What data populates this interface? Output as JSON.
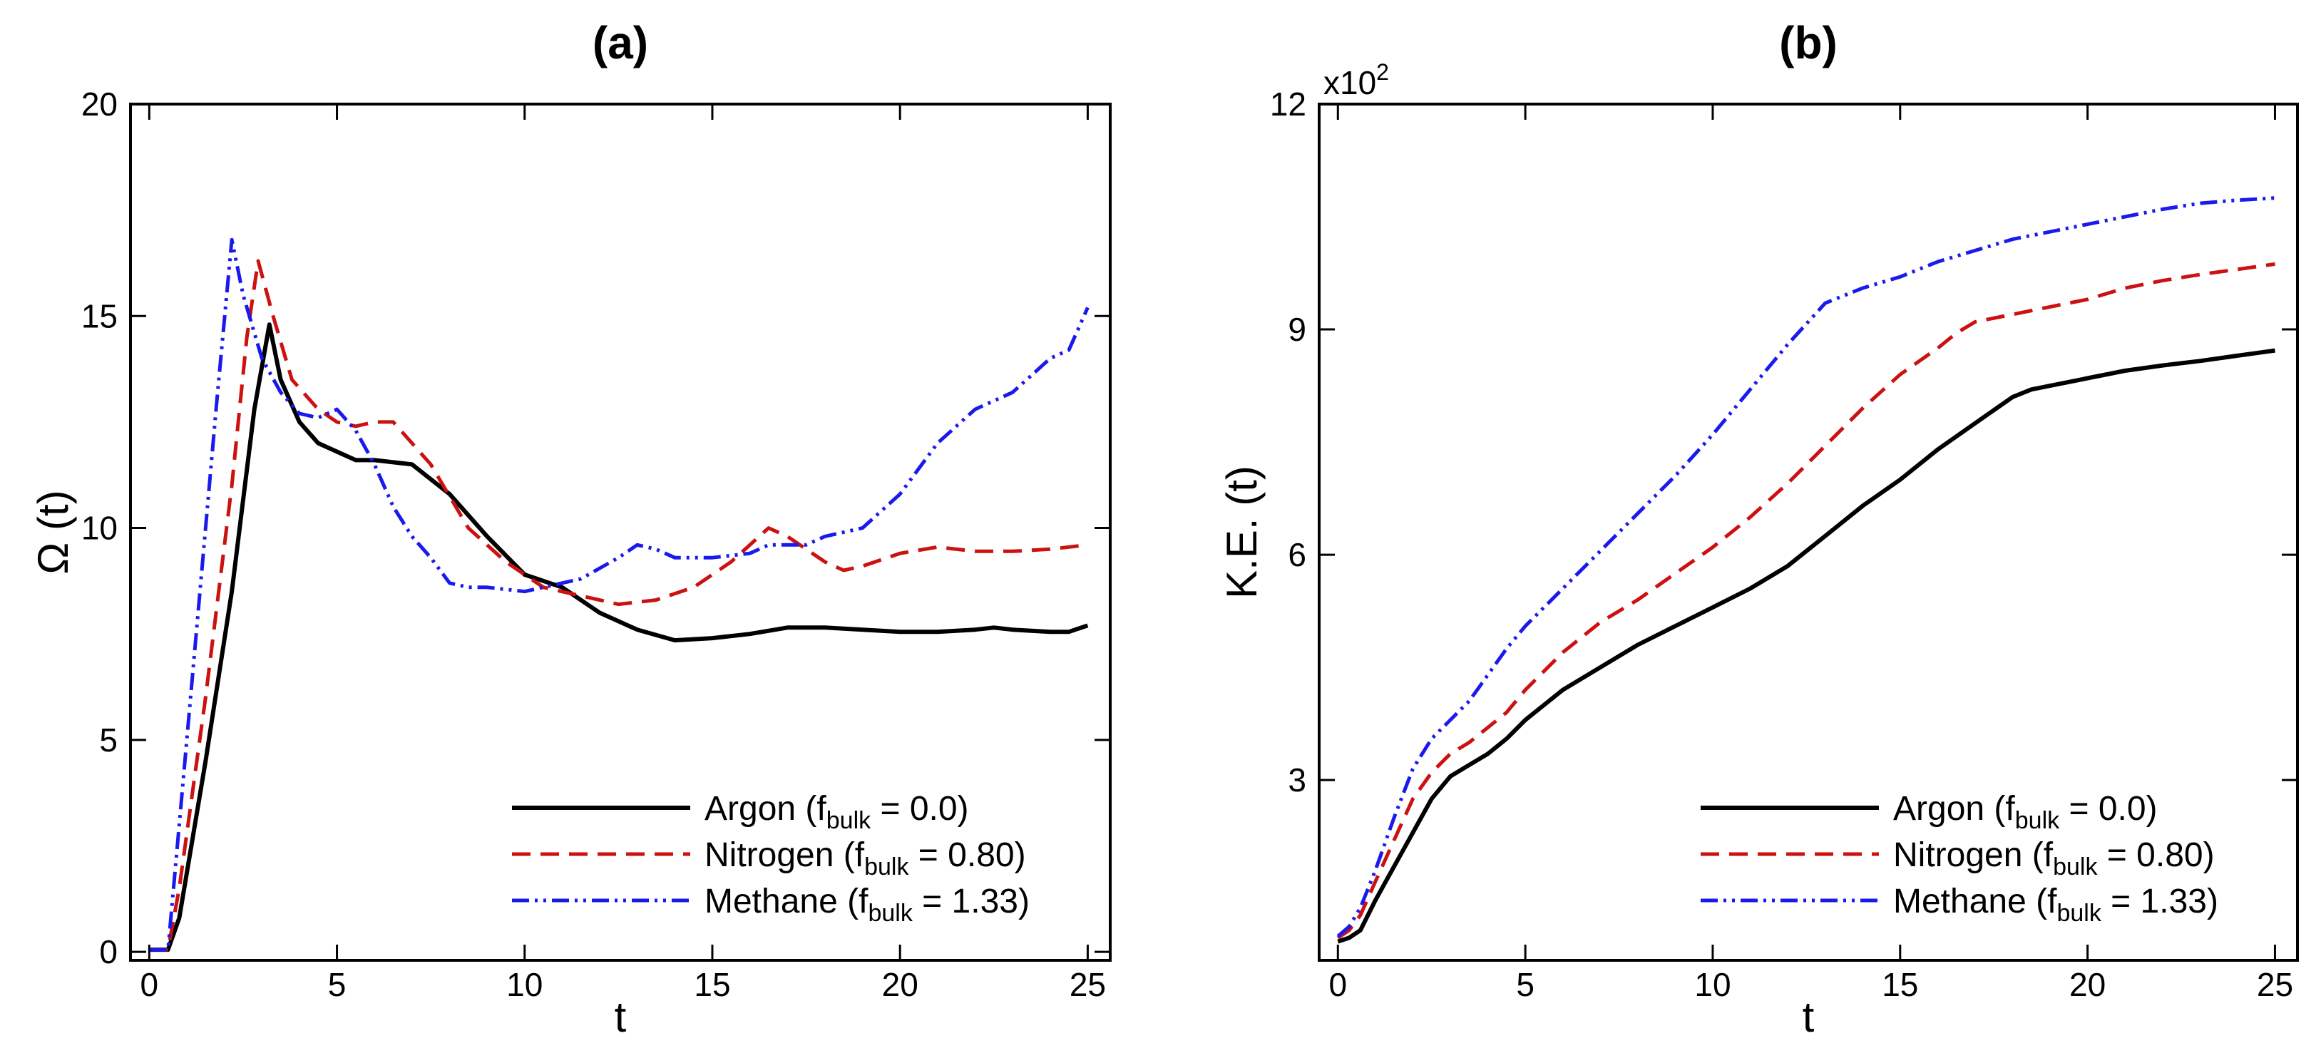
{
  "chart_data": [
    {
      "type": "line",
      "title": "(a)",
      "xlabel": "t",
      "ylabel": "Ω (t)",
      "xlim": [
        -0.5,
        25.6
      ],
      "ylim": [
        -0.2,
        20
      ],
      "xticks": [
        0,
        5,
        10,
        15,
        20,
        25
      ],
      "yticks": [
        0,
        5,
        10,
        15,
        20
      ],
      "xtick_labels": [
        "0",
        "5",
        "10",
        "15",
        "20",
        "25"
      ],
      "ytick_labels": [
        "0",
        "5",
        "10",
        "15",
        "20"
      ],
      "legend": {
        "position": "bottom-right"
      },
      "series": [
        {
          "name": "Argon (f_bulk = 0.0)",
          "legend_main": "Argon (f",
          "legend_sub": "bulk",
          "legend_rest": " = 0.0)",
          "color": "#000000",
          "style": "solid",
          "points": [
            [
              0,
              0.05
            ],
            [
              0.5,
              0.05
            ],
            [
              0.8,
              0.8
            ],
            [
              1.5,
              4.5
            ],
            [
              2.2,
              8.5
            ],
            [
              2.8,
              12.8
            ],
            [
              3.2,
              14.8
            ],
            [
              3.5,
              13.5
            ],
            [
              4,
              12.5
            ],
            [
              4.5,
              12
            ],
            [
              5,
              11.8
            ],
            [
              5.5,
              11.6
            ],
            [
              6,
              11.6
            ],
            [
              7,
              11.5
            ],
            [
              8,
              10.8
            ],
            [
              9,
              9.8
            ],
            [
              10,
              8.9
            ],
            [
              11,
              8.6
            ],
            [
              12,
              8
            ],
            [
              13,
              7.6
            ],
            [
              14,
              7.35
            ],
            [
              15,
              7.4
            ],
            [
              16,
              7.5
            ],
            [
              17,
              7.65
            ],
            [
              18,
              7.65
            ],
            [
              19,
              7.6
            ],
            [
              20,
              7.55
            ],
            [
              21,
              7.55
            ],
            [
              22,
              7.6
            ],
            [
              22.5,
              7.65
            ],
            [
              23,
              7.6
            ],
            [
              24,
              7.55
            ],
            [
              24.5,
              7.55
            ],
            [
              25,
              7.7
            ]
          ]
        },
        {
          "name": "Nitrogen (f_bulk = 0.80)",
          "legend_main": "Nitrogen (f",
          "legend_sub": "bulk",
          "legend_rest": " = 0.80)",
          "color": "#cc1111",
          "style": "dashed",
          "points": [
            [
              0,
              0.05
            ],
            [
              0.5,
              0.05
            ],
            [
              0.8,
              1.5
            ],
            [
              1.5,
              6
            ],
            [
              2.2,
              11
            ],
            [
              2.6,
              14.5
            ],
            [
              2.9,
              16.3
            ],
            [
              3.3,
              15
            ],
            [
              3.8,
              13.5
            ],
            [
              4.5,
              12.8
            ],
            [
              5,
              12.5
            ],
            [
              5.5,
              12.4
            ],
            [
              6,
              12.5
            ],
            [
              6.5,
              12.5
            ],
            [
              7.5,
              11.5
            ],
            [
              8.5,
              10
            ],
            [
              9.5,
              9.2
            ],
            [
              10.5,
              8.6
            ],
            [
              11.5,
              8.4
            ],
            [
              12.5,
              8.2
            ],
            [
              13.5,
              8.3
            ],
            [
              14.5,
              8.6
            ],
            [
              15.5,
              9.2
            ],
            [
              16.5,
              10
            ],
            [
              17,
              9.8
            ],
            [
              17.5,
              9.5
            ],
            [
              18,
              9.2
            ],
            [
              18.5,
              9
            ],
            [
              19,
              9.1
            ],
            [
              20,
              9.4
            ],
            [
              21,
              9.55
            ],
            [
              22,
              9.45
            ],
            [
              23,
              9.45
            ],
            [
              24,
              9.5
            ],
            [
              25,
              9.6
            ]
          ]
        },
        {
          "name": "Methane (f_bulk = 1.33)",
          "legend_main": "Methane (f",
          "legend_sub": "bulk",
          "legend_rest": " = 1.33)",
          "color": "#1a1aee",
          "style": "dashdotdot",
          "points": [
            [
              0,
              0.05
            ],
            [
              0.5,
              0.05
            ],
            [
              0.8,
              3
            ],
            [
              1.3,
              8
            ],
            [
              1.8,
              13
            ],
            [
              2.2,
              16.8
            ],
            [
              2.5,
              15.5
            ],
            [
              3,
              14
            ],
            [
              3.5,
              13.2
            ],
            [
              4,
              12.7
            ],
            [
              4.5,
              12.6
            ],
            [
              5,
              12.8
            ],
            [
              5.5,
              12.3
            ],
            [
              6,
              11.5
            ],
            [
              6.5,
              10.5
            ],
            [
              7,
              9.8
            ],
            [
              7.5,
              9.3
            ],
            [
              8,
              8.7
            ],
            [
              8.5,
              8.6
            ],
            [
              9,
              8.6
            ],
            [
              10,
              8.5
            ],
            [
              10.5,
              8.6
            ],
            [
              11,
              8.7
            ],
            [
              11.5,
              8.8
            ],
            [
              12.5,
              9.3
            ],
            [
              13,
              9.6
            ],
            [
              13.5,
              9.5
            ],
            [
              14,
              9.3
            ],
            [
              15,
              9.3
            ],
            [
              16,
              9.4
            ],
            [
              16.5,
              9.6
            ],
            [
              17,
              9.6
            ],
            [
              17.5,
              9.6
            ],
            [
              18,
              9.8
            ],
            [
              19,
              10
            ],
            [
              20,
              10.8
            ],
            [
              21,
              12
            ],
            [
              22,
              12.8
            ],
            [
              23,
              13.2
            ],
            [
              24,
              14
            ],
            [
              24.5,
              14.2
            ],
            [
              25,
              15.2
            ]
          ]
        }
      ]
    },
    {
      "type": "line",
      "title": "(b)",
      "xlabel": "t",
      "ylabel": "K.E. (t)",
      "multiplier": "x10",
      "multiplier_exp": "2",
      "xlim": [
        -0.5,
        25.6
      ],
      "ylim": [
        0.6,
        12
      ],
      "xticks": [
        0,
        5,
        10,
        15,
        20,
        25
      ],
      "yticks": [
        3,
        6,
        9,
        12
      ],
      "xtick_labels": [
        "0",
        "5",
        "10",
        "15",
        "20",
        "25"
      ],
      "ytick_labels": [
        "3",
        "6",
        "9",
        "12"
      ],
      "legend": {
        "position": "bottom-right"
      },
      "series": [
        {
          "name": "Argon (f_bulk = 0.0)",
          "legend_main": "Argon (f",
          "legend_sub": "bulk",
          "legend_rest": " = 0.0)",
          "color": "#000000",
          "style": "solid",
          "points": [
            [
              0,
              0.85
            ],
            [
              0.3,
              0.9
            ],
            [
              0.6,
              1.0
            ],
            [
              1,
              1.4
            ],
            [
              1.5,
              1.85
            ],
            [
              2,
              2.3
            ],
            [
              2.5,
              2.75
            ],
            [
              3,
              3.05
            ],
            [
              3.5,
              3.2
            ],
            [
              4,
              3.35
            ],
            [
              4.5,
              3.55
            ],
            [
              5,
              3.8
            ],
            [
              5.5,
              4.0
            ],
            [
              6,
              4.2
            ],
            [
              7,
              4.5
            ],
            [
              8,
              4.8
            ],
            [
              9,
              5.05
            ],
            [
              10,
              5.3
            ],
            [
              11,
              5.55
            ],
            [
              12,
              5.85
            ],
            [
              13,
              6.25
            ],
            [
              14,
              6.65
            ],
            [
              15,
              7.0
            ],
            [
              16,
              7.4
            ],
            [
              17,
              7.75
            ],
            [
              18,
              8.1
            ],
            [
              18.5,
              8.2
            ],
            [
              19,
              8.25
            ],
            [
              20,
              8.35
            ],
            [
              21,
              8.45
            ],
            [
              22,
              8.52
            ],
            [
              23,
              8.58
            ],
            [
              24,
              8.65
            ],
            [
              25,
              8.72
            ]
          ]
        },
        {
          "name": "Nitrogen (f_bulk = 0.80)",
          "legend_main": "Nitrogen (f",
          "legend_sub": "bulk",
          "legend_rest": " = 0.80)",
          "color": "#cc1111",
          "style": "dashed",
          "points": [
            [
              0,
              0.9
            ],
            [
              0.3,
              1.0
            ],
            [
              0.6,
              1.2
            ],
            [
              1,
              1.65
            ],
            [
              1.5,
              2.2
            ],
            [
              2,
              2.75
            ],
            [
              2.5,
              3.1
            ],
            [
              3,
              3.35
            ],
            [
              3.5,
              3.5
            ],
            [
              4,
              3.7
            ],
            [
              4.5,
              3.9
            ],
            [
              5,
              4.2
            ],
            [
              5.5,
              4.45
            ],
            [
              6,
              4.7
            ],
            [
              7,
              5.1
            ],
            [
              8,
              5.4
            ],
            [
              9,
              5.75
            ],
            [
              10,
              6.1
            ],
            [
              11,
              6.5
            ],
            [
              12,
              6.95
            ],
            [
              13,
              7.45
            ],
            [
              14,
              7.95
            ],
            [
              15,
              8.4
            ],
            [
              16,
              8.75
            ],
            [
              16.5,
              8.95
            ],
            [
              17,
              9.1
            ],
            [
              18,
              9.2
            ],
            [
              19,
              9.3
            ],
            [
              20,
              9.4
            ],
            [
              21,
              9.55
            ],
            [
              22,
              9.65
            ],
            [
              23,
              9.73
            ],
            [
              24,
              9.8
            ],
            [
              25,
              9.87
            ]
          ]
        },
        {
          "name": "Methane (f_bulk = 1.33)",
          "legend_main": "Methane (f",
          "legend_sub": "bulk",
          "legend_rest": " = 1.33)",
          "color": "#1a1aee",
          "style": "dashdotdot",
          "points": [
            [
              0,
              0.92
            ],
            [
              0.3,
              1.05
            ],
            [
              0.6,
              1.3
            ],
            [
              1,
              1.8
            ],
            [
              1.5,
              2.5
            ],
            [
              2,
              3.15
            ],
            [
              2.5,
              3.55
            ],
            [
              3,
              3.8
            ],
            [
              3.5,
              4.05
            ],
            [
              4,
              4.4
            ],
            [
              4.5,
              4.75
            ],
            [
              5,
              5.05
            ],
            [
              5.5,
              5.3
            ],
            [
              6,
              5.55
            ],
            [
              7,
              6.05
            ],
            [
              8,
              6.55
            ],
            [
              9,
              7.05
            ],
            [
              10,
              7.6
            ],
            [
              11,
              8.2
            ],
            [
              12,
              8.8
            ],
            [
              13,
              9.35
            ],
            [
              14,
              9.55
            ],
            [
              15,
              9.7
            ],
            [
              16,
              9.9
            ],
            [
              17,
              10.05
            ],
            [
              18,
              10.2
            ],
            [
              19,
              10.3
            ],
            [
              20,
              10.4
            ],
            [
              21,
              10.5
            ],
            [
              22,
              10.6
            ],
            [
              23,
              10.68
            ],
            [
              24,
              10.72
            ],
            [
              25,
              10.75
            ]
          ]
        }
      ]
    }
  ]
}
